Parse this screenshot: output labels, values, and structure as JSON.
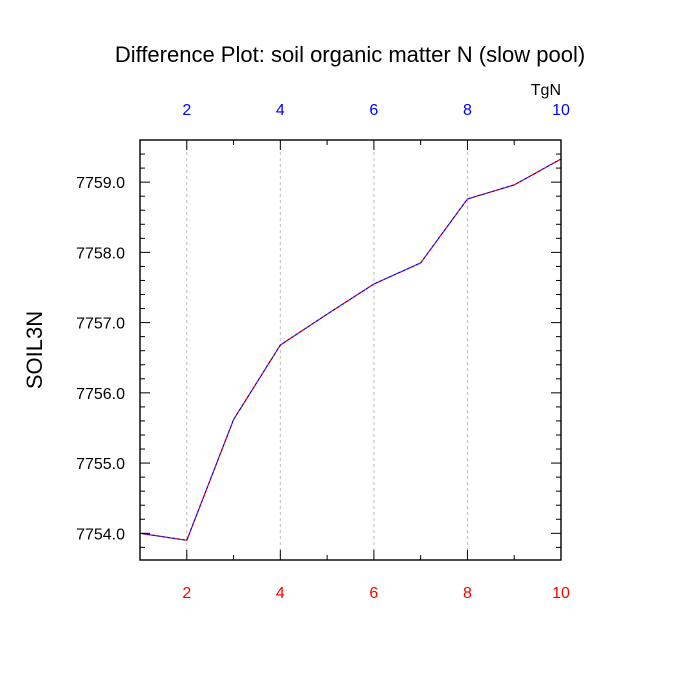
{
  "chart_data": {
    "type": "line",
    "title": "Difference Plot: soil organic matter N (slow pool)",
    "units": "TgN",
    "ylabel": "SOIL3N",
    "xlabel": "",
    "xlim": [
      1,
      10
    ],
    "ylim": [
      7753.62,
      7759.6
    ],
    "x_ticks_bottom": [
      "2",
      "4",
      "6",
      "8",
      "10"
    ],
    "x_ticks_top": [
      "2",
      "4",
      "6",
      "8",
      "10"
    ],
    "x_tick_values": [
      2,
      4,
      6,
      8,
      10
    ],
    "y_ticks": [
      "7754.0",
      "7755.0",
      "7756.0",
      "7757.0",
      "7758.0",
      "7759.0"
    ],
    "y_tick_values": [
      7754,
      7755,
      7756,
      7757,
      7758,
      7759
    ],
    "grid": "vertical dashed at major x ticks",
    "colors": {
      "bottom_axis_labels": "#ff0000",
      "top_axis_labels": "#0000ff",
      "series_a": "#ff0000",
      "series_b": "#0000ff",
      "grid": "#bbbbbb"
    },
    "series": [
      {
        "x": [
          1,
          2,
          3,
          4,
          5,
          6,
          7,
          8,
          9,
          10
        ],
        "values": [
          7754.0,
          7753.9,
          7755.62,
          7756.68,
          7757.12,
          7757.55,
          7757.85,
          7758.76,
          7758.96,
          7759.33
        ]
      },
      {
        "x": [
          1,
          2,
          3,
          4,
          5,
          6,
          7,
          8,
          9,
          10
        ],
        "values": [
          7754.0,
          7753.9,
          7755.62,
          7756.68,
          7757.12,
          7757.55,
          7757.85,
          7758.76,
          7758.96,
          7759.33
        ]
      }
    ]
  }
}
